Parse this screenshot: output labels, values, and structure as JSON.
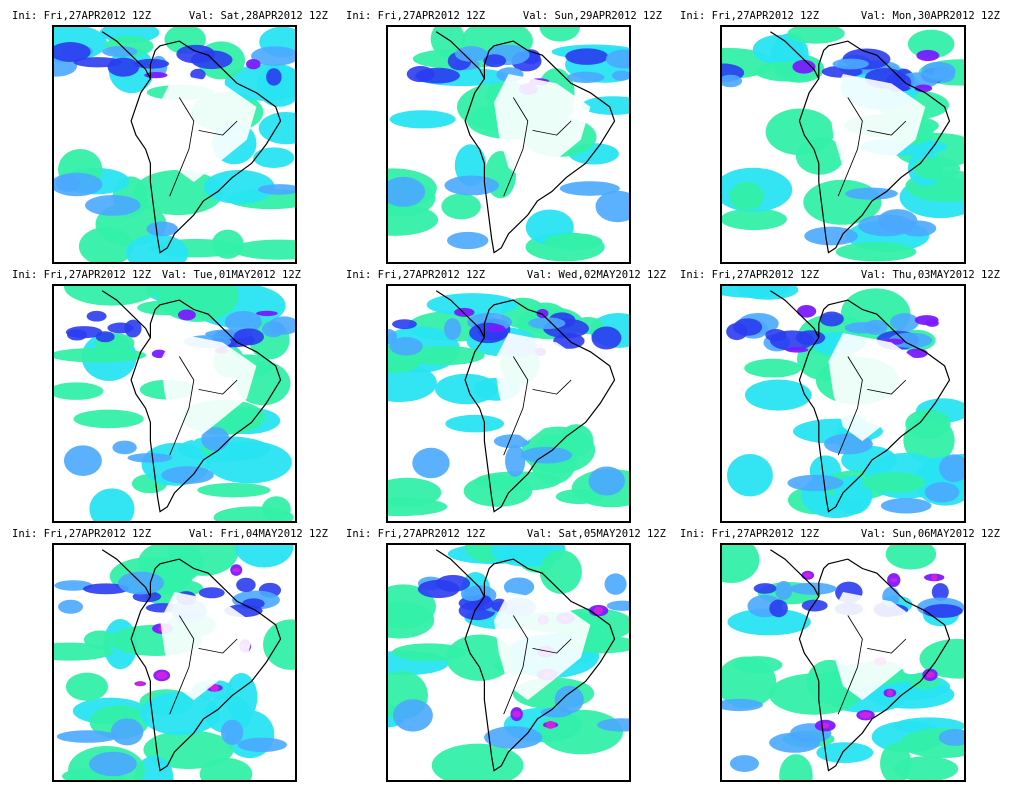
{
  "panels": [
    {
      "ini": "Ini: Fri,27APR2012 12Z",
      "val": "Val: Sat,28APR2012 12Z"
    },
    {
      "ini": "Ini: Fri,27APR2012 12Z",
      "val": "Val: Sun,29APR2012 12Z"
    },
    {
      "ini": "Ini: Fri,27APR2012 12Z",
      "val": "Val: Mon,30APR2012 12Z"
    },
    {
      "ini": "Ini: Fri,27APR2012 12Z",
      "val": "Val: Tue,01MAY2012 12Z"
    },
    {
      "ini": "Ini: Fri,27APR2012 12Z",
      "val": "Val: Wed,02MAY2012 12Z"
    },
    {
      "ini": "Ini: Fri,27APR2012 12Z",
      "val": "Val: Thu,03MAY2012 12Z"
    },
    {
      "ini": "Ini: Fri,27APR2012 12Z",
      "val": "Val: Fri,04MAY2012 12Z"
    },
    {
      "ini": "Ini: Fri,27APR2012 12Z",
      "val": "Val: Sat,05MAY2012 12Z"
    },
    {
      "ini": "Ini: Fri,27APR2012 12Z",
      "val": "Val: Sun,06MAY2012 12Z"
    }
  ],
  "colors": {
    "light": "#33f0a8",
    "cyan": "#28e4f2",
    "sky": "#4aa8ff",
    "blue": "#2a3cf0",
    "purple": "#7a1aff",
    "magenta": "#d020e0",
    "deep": "#7a1060",
    "coast": "#000000"
  }
}
